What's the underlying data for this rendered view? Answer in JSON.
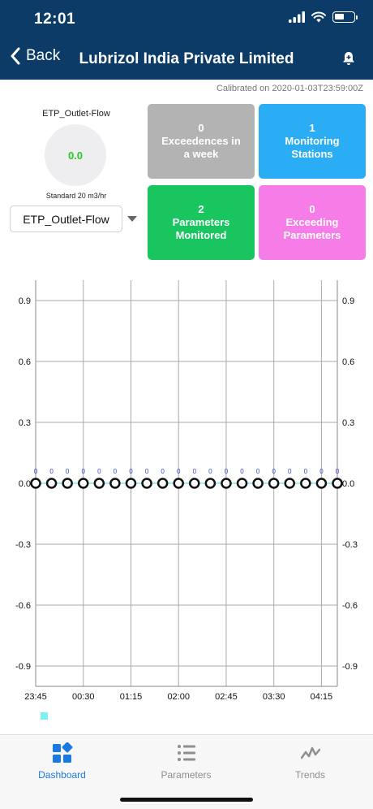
{
  "status": {
    "time": "12:01"
  },
  "nav": {
    "back_label": "Back",
    "title": "Lubrizol India Private Limited"
  },
  "calibrated": "Calibrated on 2020-01-03T23:59:00Z",
  "gauge": {
    "label": "ETP_Outlet-Flow",
    "value": "0.0",
    "standard": "Standard 20 m3/hr"
  },
  "dropdown": {
    "selected": "ETP_Outlet-Flow"
  },
  "tiles": [
    {
      "num": "0",
      "text": "Exceedences in\na week",
      "color": "#b3b3b3"
    },
    {
      "num": "1",
      "text": "Monitoring\nStations",
      "color": "#2aadf5"
    },
    {
      "num": "2",
      "text": "Parameters\nMonitored",
      "color": "#19c55f"
    },
    {
      "num": "0",
      "text": "Exceeding\nParameters",
      "color": "#f67de8"
    }
  ],
  "chart_data": {
    "type": "line",
    "x_tick_labels": [
      "23:45",
      "00:30",
      "01:15",
      "02:00",
      "02:45",
      "03:30",
      "04:15"
    ],
    "y_ticks": [
      0.9,
      0.6,
      0.3,
      0.0,
      -0.3,
      -0.6,
      -0.9
    ],
    "y_tick_labels": [
      "0.9",
      "0.6",
      "0.3",
      "0.0",
      "-0.3",
      "-0.6",
      "-0.9"
    ],
    "ylim": [
      -1.0,
      1.0
    ],
    "grid": true,
    "point_count": 20,
    "series": [
      {
        "values": [
          0,
          0,
          0,
          0,
          0,
          0,
          0,
          0,
          0,
          0,
          0,
          0,
          0,
          0,
          0,
          0,
          0,
          0,
          0,
          0
        ],
        "data_labels": [
          "0",
          "0",
          "0",
          "0",
          "0",
          "0",
          "0",
          "0",
          "0",
          "0",
          "0",
          "0",
          "0",
          "0",
          "0",
          "0",
          "0",
          "0",
          "0",
          "0"
        ],
        "color": "#7ee8ee",
        "marker": "circle"
      }
    ],
    "label_color": "#3344dd",
    "legend_color": "#7ef0f5"
  },
  "tabs": [
    {
      "label": "Dashboard",
      "icon": "dashboard-icon",
      "active": true
    },
    {
      "label": "Parameters",
      "icon": "list-icon",
      "active": false
    },
    {
      "label": "Trends",
      "icon": "trends-icon",
      "active": false
    }
  ]
}
